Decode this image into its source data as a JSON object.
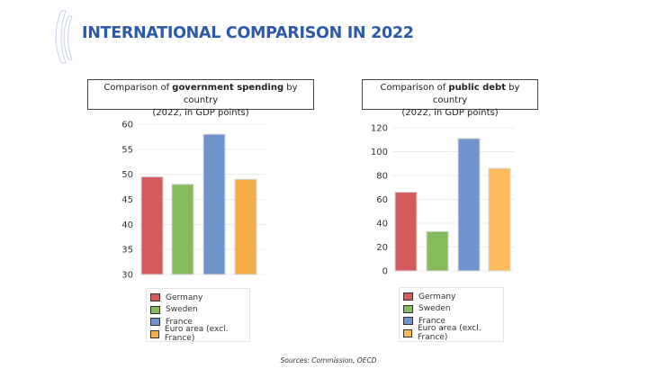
{
  "header": {
    "title": "INTERNATIONAL COMPARISON IN 2022"
  },
  "chart_data": [
    {
      "type": "bar",
      "title": {
        "prefix": "Comparison of ",
        "bold": "government spending",
        "suffix": " by country",
        "line2": "(2022, in GDP points)"
      },
      "categories": [
        "Germany",
        "Sweden",
        "France",
        "Euro area (excl. France)"
      ],
      "values": [
        49.5,
        48,
        58,
        49
      ],
      "colors": [
        "#d45b5b",
        "#86bb5b",
        "#7193cb",
        "#f2ae48"
      ],
      "ylim": [
        30,
        60
      ],
      "yticks": [
        "30",
        "35",
        "40",
        "45",
        "50",
        "55",
        "60"
      ],
      "grid": true,
      "legend": "bottom"
    },
    {
      "type": "bar",
      "title": {
        "prefix": "Comparison of ",
        "bold": "public debt",
        "suffix": " by country",
        "line2": "(2022, in GDP points)"
      },
      "categories": [
        "Germany",
        "Sweden",
        "France",
        "Euro area (excl. France)"
      ],
      "values": [
        66,
        33,
        111,
        86
      ],
      "colors": [
        "#d45b5b",
        "#86bb5b",
        "#7193cb",
        "#fdbb5e"
      ],
      "ylim": [
        0,
        120
      ],
      "yticks": [
        "0",
        "20",
        "40",
        "60",
        "80",
        "100",
        "120"
      ],
      "grid": true,
      "legend": "bottom"
    }
  ],
  "footer": {
    "sources": "Sources: Commission, OECD"
  }
}
